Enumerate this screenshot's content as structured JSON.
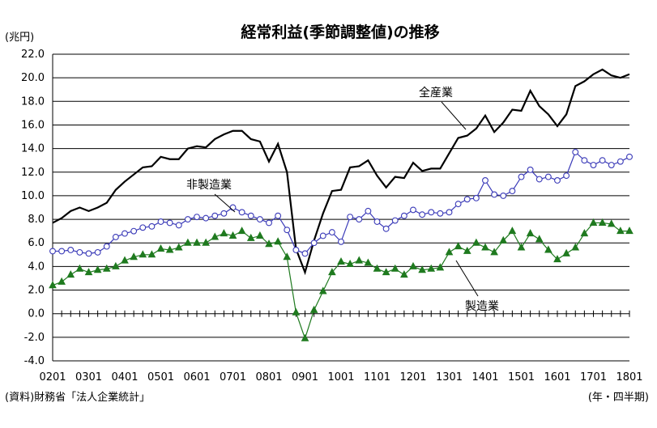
{
  "chart_data": {
    "type": "line",
    "title": "経常利益(季節調整値)の推移",
    "ylabel": "(兆円)",
    "xlabel": "(年・四半期)",
    "source": "(資料)財務省「法人企業統計」",
    "ylim": [
      -4.0,
      22.0
    ],
    "yticks": [
      "22.0",
      "20.0",
      "18.0",
      "16.0",
      "14.0",
      "12.0",
      "10.0",
      "8.0",
      "6.0",
      "4.0",
      "2.0",
      "0.0",
      "-2.0",
      "-4.0"
    ],
    "xtick_labels": [
      "0201",
      "0301",
      "0401",
      "0501",
      "0601",
      "0701",
      "0801",
      "0901",
      "1001",
      "1101",
      "1201",
      "1301",
      "1401",
      "1501",
      "1601",
      "1701",
      "1801"
    ],
    "x": [
      "0201",
      "0202",
      "0203",
      "0204",
      "0301",
      "0302",
      "0303",
      "0304",
      "0401",
      "0402",
      "0403",
      "0404",
      "0501",
      "0502",
      "0503",
      "0504",
      "0601",
      "0602",
      "0603",
      "0604",
      "0701",
      "0702",
      "0703",
      "0704",
      "0801",
      "0802",
      "0803",
      "0804",
      "0901",
      "0902",
      "0903",
      "0904",
      "1001",
      "1002",
      "1003",
      "1004",
      "1101",
      "1102",
      "1103",
      "1104",
      "1201",
      "1202",
      "1203",
      "1204",
      "1301",
      "1302",
      "1303",
      "1304",
      "1401",
      "1402",
      "1403",
      "1404",
      "1501",
      "1502",
      "1503",
      "1504",
      "1601",
      "1602",
      "1603",
      "1604",
      "1701",
      "1702",
      "1703",
      "1704",
      "1801"
    ],
    "series": [
      {
        "name": "全産業",
        "color": "#000000",
        "marker": "none",
        "values": [
          7.7,
          8.1,
          8.7,
          9.0,
          8.7,
          9.0,
          9.4,
          10.5,
          11.2,
          11.8,
          12.4,
          12.5,
          13.3,
          13.1,
          13.1,
          14.0,
          14.2,
          14.1,
          14.8,
          15.2,
          15.5,
          15.5,
          14.8,
          14.6,
          12.9,
          14.4,
          12.0,
          5.5,
          3.5,
          6.2,
          8.5,
          10.4,
          10.5,
          12.4,
          12.5,
          13.0,
          11.7,
          10.7,
          11.6,
          11.5,
          12.8,
          12.1,
          12.3,
          12.3,
          13.6,
          14.9,
          15.1,
          15.7,
          16.8,
          15.4,
          16.2,
          17.3,
          17.2,
          18.9,
          17.6,
          16.9,
          15.9,
          16.9,
          19.3,
          19.7,
          20.3,
          20.7,
          20.2,
          20.0,
          20.3
        ]
      },
      {
        "name": "非製造業",
        "color": "#3a3ab8",
        "marker": "circle",
        "values": [
          5.3,
          5.3,
          5.4,
          5.2,
          5.1,
          5.2,
          5.7,
          6.5,
          6.8,
          7.0,
          7.3,
          7.4,
          7.8,
          7.7,
          7.5,
          8.0,
          8.2,
          8.1,
          8.3,
          8.5,
          9.0,
          8.6,
          8.3,
          8.0,
          7.7,
          8.3,
          7.1,
          5.4,
          5.1,
          6.0,
          6.6,
          6.9,
          6.1,
          8.2,
          8.0,
          8.7,
          7.8,
          7.2,
          7.9,
          8.3,
          8.8,
          8.4,
          8.6,
          8.5,
          8.6,
          9.3,
          9.7,
          9.8,
          11.3,
          10.1,
          10.0,
          10.4,
          11.6,
          12.2,
          11.4,
          11.6,
          11.3,
          11.7,
          13.7,
          13.0,
          12.6,
          13.0,
          12.6,
          12.9,
          13.3
        ]
      },
      {
        "name": "製造業",
        "color": "#1f7a1f",
        "marker": "triangle",
        "values": [
          2.4,
          2.7,
          3.3,
          3.8,
          3.5,
          3.7,
          3.8,
          4.0,
          4.5,
          4.8,
          5.0,
          5.0,
          5.5,
          5.4,
          5.6,
          6.0,
          6.0,
          6.0,
          6.5,
          6.8,
          6.6,
          7.0,
          6.4,
          6.6,
          5.9,
          6.1,
          4.8,
          0.1,
          -2.1,
          0.3,
          1.9,
          3.5,
          4.4,
          4.2,
          4.5,
          4.3,
          3.8,
          3.5,
          3.8,
          3.3,
          4.0,
          3.7,
          3.8,
          3.9,
          5.2,
          5.7,
          5.3,
          6.0,
          5.6,
          5.2,
          6.2,
          7.0,
          5.6,
          6.8,
          6.3,
          5.4,
          4.6,
          5.1,
          5.6,
          6.8,
          7.7,
          7.7,
          7.6,
          7.0,
          7.0
        ]
      }
    ]
  }
}
